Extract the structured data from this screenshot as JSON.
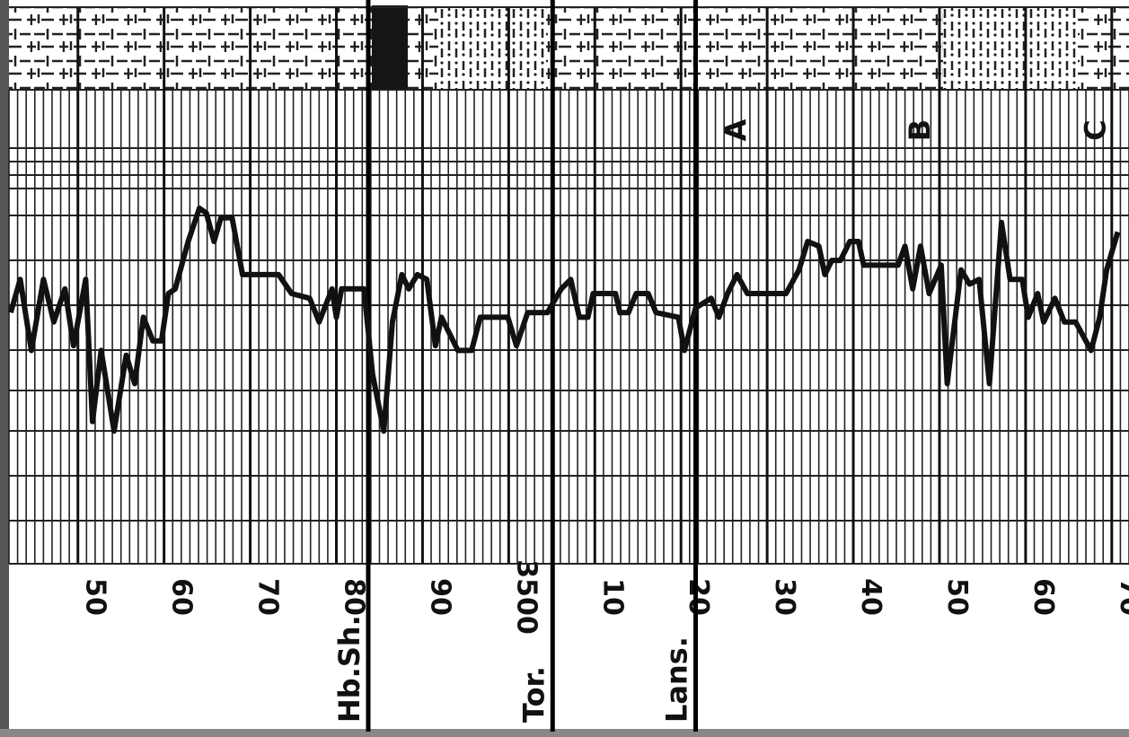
{
  "chart_data": {
    "type": "line",
    "xlim": [
      3442,
      3572
    ],
    "ylim": [
      0,
      10
    ],
    "xticks": [
      {
        "value": 3450,
        "label": "50"
      },
      {
        "value": 3460,
        "label": "60"
      },
      {
        "value": 3470,
        "label": "70"
      },
      {
        "value": 3480,
        "label": "80"
      },
      {
        "value": 3490,
        "label": "90"
      },
      3500,
      {
        "value": 3510,
        "label": "10"
      },
      {
        "value": 3520,
        "label": "20"
      },
      {
        "value": 3530,
        "label": "30"
      },
      {
        "value": 3540,
        "label": "40"
      },
      {
        "value": 3550,
        "label": "50"
      },
      {
        "value": 3560,
        "label": "60"
      },
      {
        "value": 3570,
        "label": "70"
      }
    ],
    "formation_tops": [
      {
        "name": "Hb.Sh.",
        "depth": 3483.7
      },
      {
        "name": "Tor.",
        "depth": 3505.1
      },
      {
        "name": "Lans.",
        "depth": 3521.7
      }
    ],
    "zones": [
      {
        "name": "A",
        "depth": 3526.3
      },
      {
        "name": "B",
        "depth": 3547.6
      },
      {
        "name": "C",
        "depth": 3568.0
      }
    ],
    "series": [
      {
        "color": "#111111",
        "x": [
          3442.2,
          3443.3,
          3444.6,
          3446.0,
          3447.2,
          3448.5,
          3449.5,
          3450.9,
          3451.7,
          3452.7,
          3454.2,
          3455.6,
          3456.6,
          3457.6,
          3458.7,
          3459.7,
          3460.5,
          3461.3,
          3462.8,
          3464.1,
          3464.9,
          3465.8,
          3466.6,
          3467.9,
          3469.1,
          3473.3,
          3474.8,
          3476.9,
          3478.0,
          3479.5,
          3480.0,
          3480.6,
          3483.2,
          3484.2,
          3485.5,
          3486.5,
          3487.6,
          3488.4,
          3489.4,
          3490.5,
          3491.5,
          3492.2,
          3494.1,
          3495.7,
          3496.7,
          3499.9,
          3500.9,
          3502.2,
          3504.5,
          3506.1,
          3507.2,
          3508.2,
          3509.2,
          3509.8,
          3512.4,
          3512.9,
          3513.9,
          3514.8,
          3516.2,
          3517.1,
          3519.7,
          3520.4,
          3521.7,
          3523.5,
          3524.4,
          3525.4,
          3526.5,
          3527.7,
          3532.2,
          3533.7,
          3534.7,
          3536.0,
          3536.7,
          3537.5,
          3538.5,
          3539.6,
          3540.6,
          3541.2,
          3545.2,
          3546.0,
          3546.9,
          3547.8,
          3548.8,
          3550.2,
          3550.9,
          3552.5,
          3553.5,
          3554.6,
          3555.8,
          3557.2,
          3558.2,
          3559.6,
          3560.3,
          3561.4,
          3562.1,
          3563.4,
          3564.5,
          3565.8,
          3567.6,
          3568.6,
          3569.4,
          3570.7
        ],
        "values": [
          5.3,
          6.0,
          4.5,
          6.0,
          5.1,
          5.8,
          4.6,
          6.0,
          3.0,
          4.5,
          2.8,
          4.4,
          3.8,
          5.2,
          4.7,
          4.7,
          5.7,
          5.8,
          6.8,
          7.5,
          7.4,
          6.8,
          7.3,
          7.3,
          6.1,
          6.1,
          5.7,
          5.6,
          5.1,
          5.8,
          5.2,
          5.8,
          5.8,
          4.0,
          2.8,
          5.1,
          6.1,
          5.8,
          6.1,
          6.0,
          4.6,
          5.2,
          4.5,
          4.5,
          5.2,
          5.2,
          4.6,
          5.3,
          5.3,
          5.8,
          6.0,
          5.2,
          5.2,
          5.7,
          5.7,
          5.3,
          5.3,
          5.7,
          5.7,
          5.3,
          5.2,
          4.5,
          5.4,
          5.6,
          5.2,
          5.7,
          6.1,
          5.7,
          5.7,
          6.2,
          6.8,
          6.7,
          6.1,
          6.4,
          6.4,
          6.8,
          6.8,
          6.3,
          6.3,
          6.7,
          5.8,
          6.7,
          5.7,
          6.3,
          3.8,
          6.2,
          5.9,
          6.0,
          3.8,
          7.2,
          6.0,
          6.0,
          5.2,
          5.7,
          5.1,
          5.6,
          5.1,
          5.1,
          4.5,
          5.2,
          6.2,
          7.0
        ]
      }
    ]
  }
}
